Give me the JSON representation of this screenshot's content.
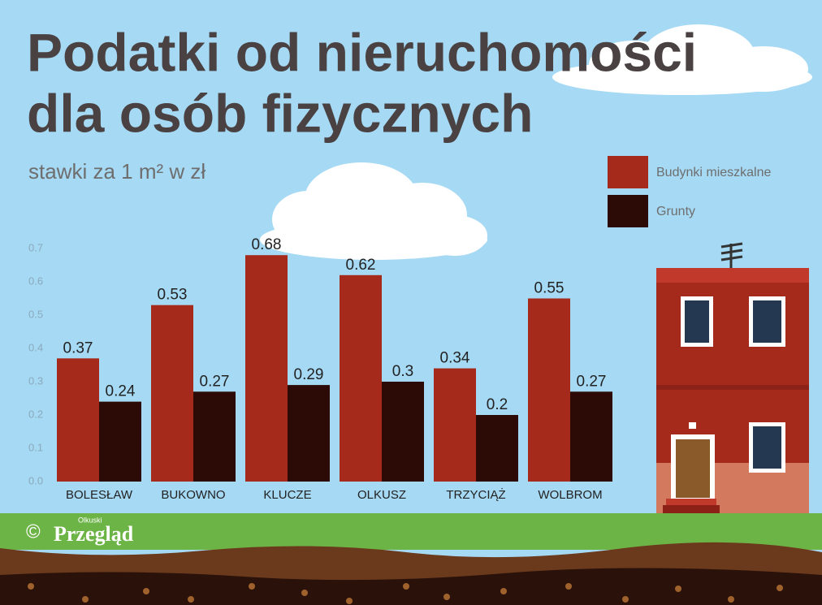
{
  "chart_data": {
    "type": "bar",
    "title": [
      "Podatki od nieruchomości",
      "dla osób fizycznych"
    ],
    "subtitle": "stawki za 1 m² w zł",
    "categories": [
      "BOLESŁAW",
      "BUKOWNO",
      "KLUCZE",
      "OLKUSZ",
      "TRZYCIĄŻ",
      "WOLBROM"
    ],
    "series": [
      {
        "name": "Budynki mieszkalne",
        "color": "#a52a1c",
        "values": [
          0.37,
          0.53,
          0.68,
          0.62,
          0.34,
          0.55
        ]
      },
      {
        "name": "Grunty",
        "color": "#2c0a06",
        "values": [
          0.24,
          0.27,
          0.29,
          0.3,
          0.2,
          0.27
        ]
      }
    ],
    "ylim": [
      0,
      0.7
    ],
    "yticks": [
      {
        "value": 0,
        "label": "0.0"
      },
      0.1,
      0.2,
      0.3,
      0.4,
      0.5,
      0.6,
      0.7
    ],
    "grid": false,
    "legend": "top-right"
  },
  "credit": {
    "copyright": "©",
    "brand_small": "Olkuski",
    "brand": "Przegląd"
  }
}
